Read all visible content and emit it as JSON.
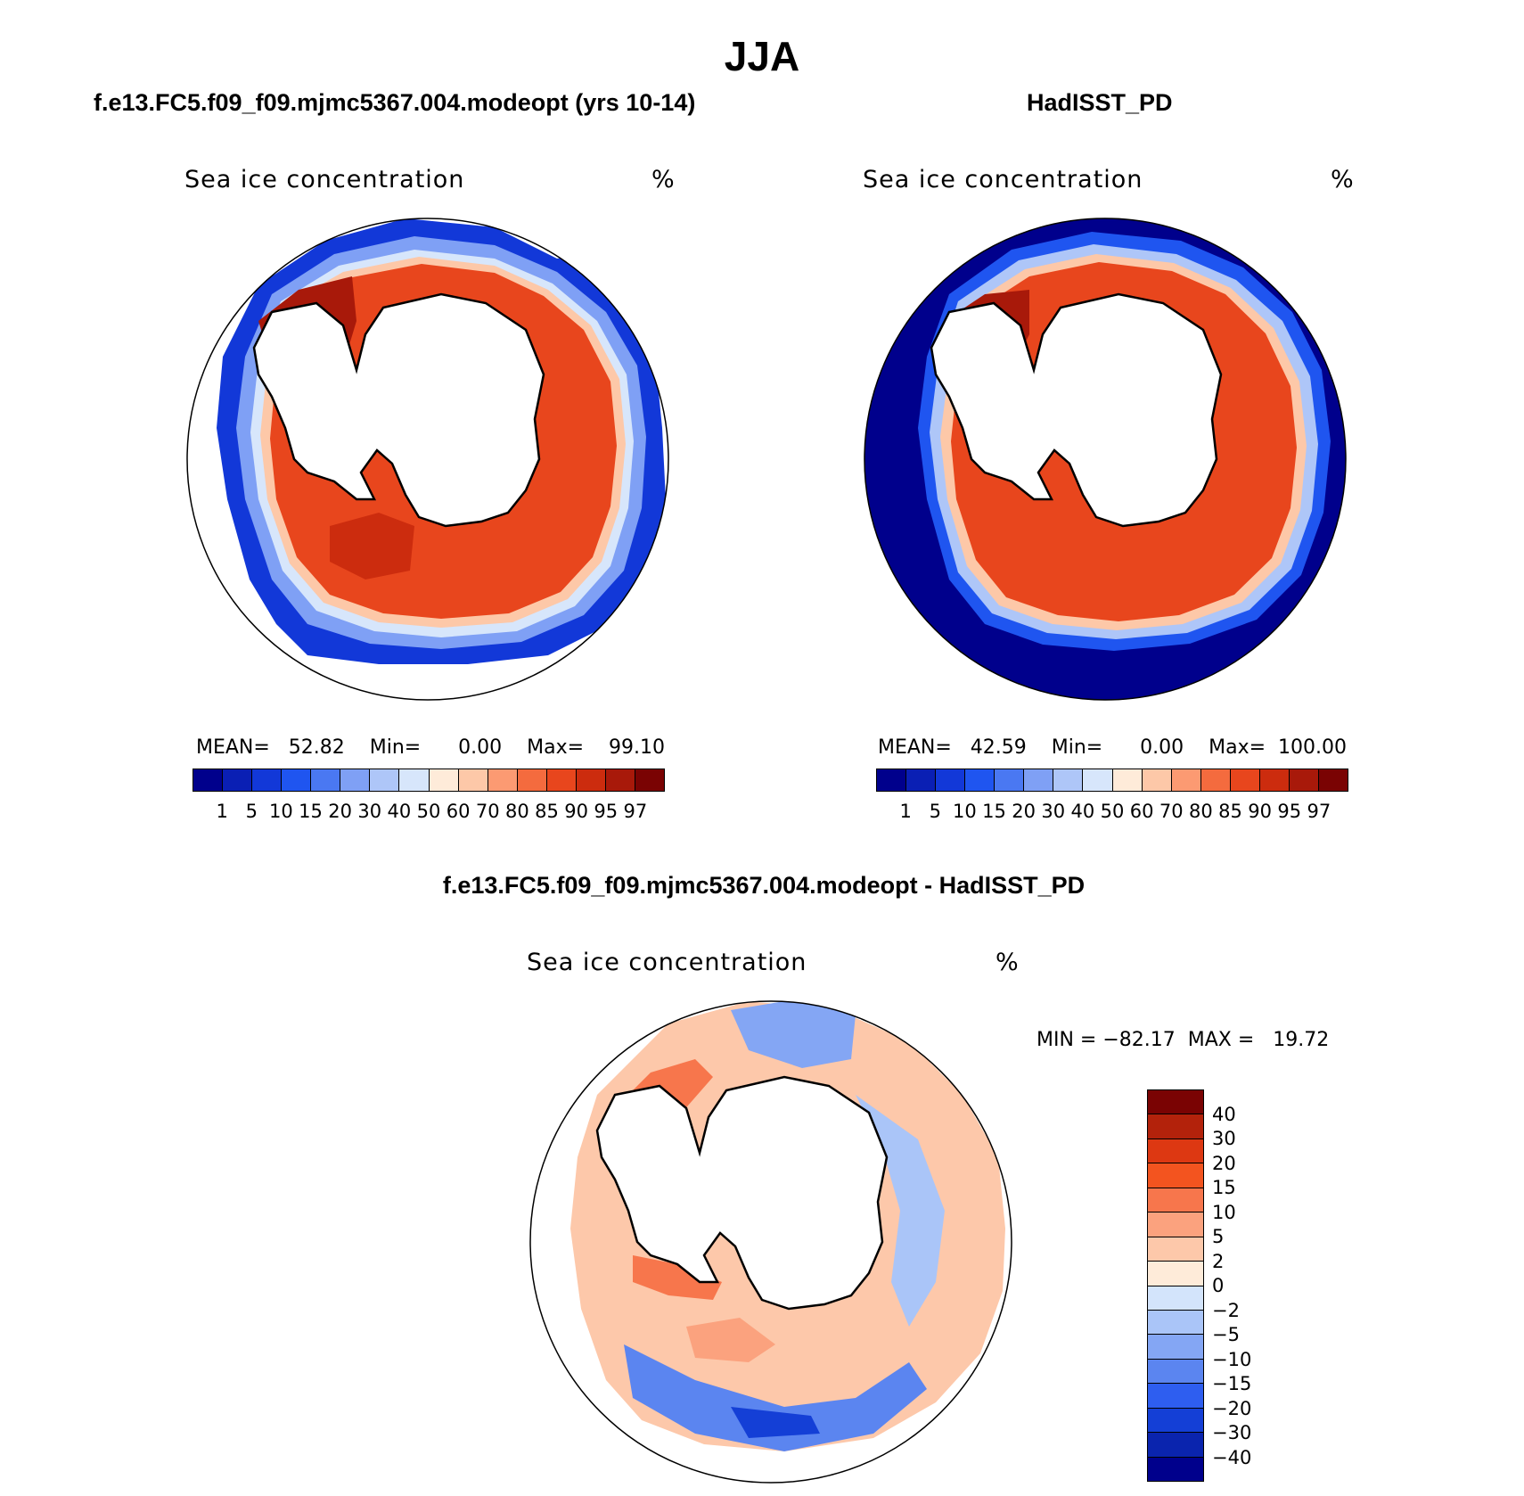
{
  "figure_title": "JJA",
  "panels": {
    "model": {
      "title": "f.e13.FC5.f09_f09.mjmc5367.004.modeopt (yrs 10-14)",
      "variable": "Sea ice concentration",
      "units": "%",
      "stats": "MEAN=   52.82    Min=      0.00    Max=    99.10"
    },
    "obs": {
      "title": "HadISST_PD",
      "variable": "Sea ice concentration",
      "units": "%",
      "stats": "MEAN=   42.59    Min=      0.00    Max=  100.00"
    },
    "diff": {
      "title": "f.e13.FC5.f09_f09.mjmc5367.004.modeopt - HadISST_PD",
      "variable": "Sea ice concentration",
      "units": "%",
      "stats": "MIN = −82.17  MAX =   19.72"
    }
  },
  "colorbar_abs": {
    "levels": [
      "1",
      "5",
      "10",
      "15",
      "20",
      "30",
      "40",
      "50",
      "60",
      "70",
      "80",
      "85",
      "90",
      "95",
      "97"
    ],
    "colors": [
      "#00008c",
      "#0a1fb4",
      "#1238d8",
      "#1f55f0",
      "#4a78f2",
      "#7fa0f5",
      "#aec6f8",
      "#d7e6fb",
      "#feebd9",
      "#fdc8a8",
      "#fc9a72",
      "#f46b3e",
      "#e8461d",
      "#cc2c0e",
      "#a8190a",
      "#7a0303"
    ]
  },
  "colorbar_diff": {
    "levels": [
      "40",
      "30",
      "20",
      "15",
      "10",
      "5",
      "2",
      "0",
      "−2",
      "−5",
      "−10",
      "−15",
      "−20",
      "−30",
      "−40"
    ],
    "colors": [
      "#7a0303",
      "#b3220b",
      "#dd3812",
      "#f3541f",
      "#f7764c",
      "#fba27e",
      "#fdc8aa",
      "#feebd9",
      "#d3e4fb",
      "#aac5f8",
      "#84a6f4",
      "#5b85f0",
      "#2e5ef0",
      "#143fd6",
      "#0a24ae",
      "#00008c"
    ]
  },
  "chart_data": [
    {
      "type": "heatmap",
      "title": "f.e13.FC5.f09_f09.mjmc5367.004.modeopt (yrs 10-14)",
      "variable": "Sea ice concentration",
      "units": "%",
      "mean": 52.82,
      "min": 0.0,
      "max": 99.1
    },
    {
      "type": "heatmap",
      "title": "HadISST_PD",
      "variable": "Sea ice concentration",
      "units": "%",
      "mean": 42.59,
      "min": 0.0,
      "max": 100.0
    },
    {
      "type": "heatmap",
      "title": "f.e13.FC5.f09_f09.mjmc5367.004.modeopt - HadISST_PD",
      "variable": "Sea ice concentration",
      "units": "%",
      "min": -82.17,
      "max": 19.72
    }
  ]
}
